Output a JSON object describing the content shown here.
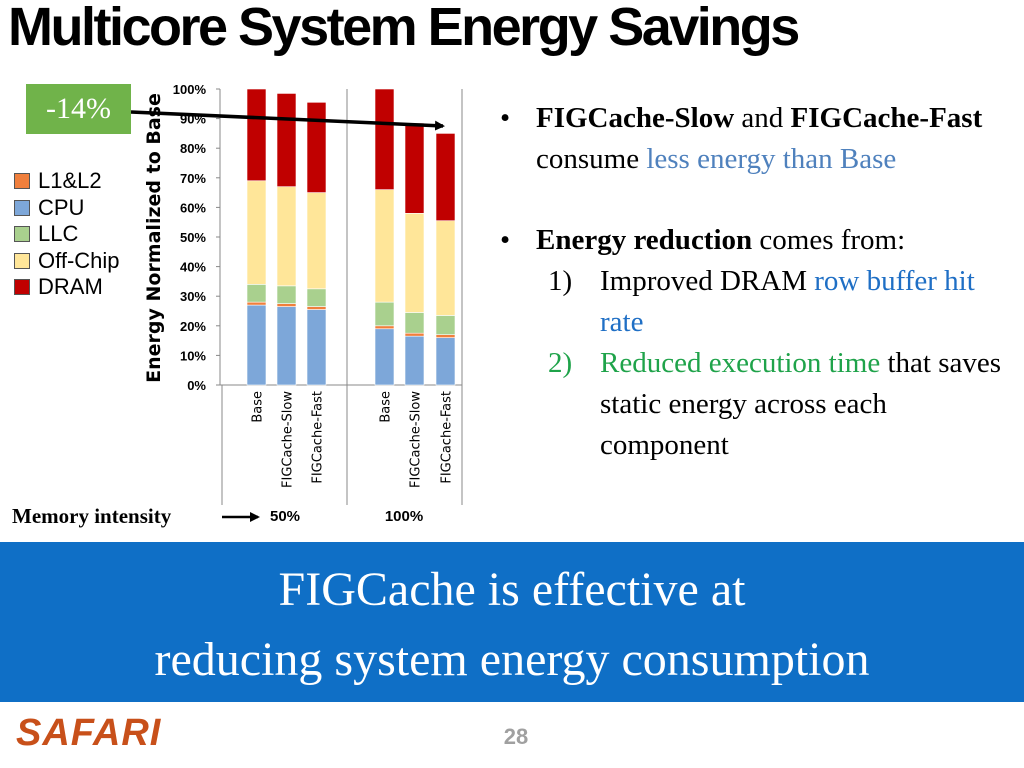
{
  "title": "Multicore System Energy Savings",
  "badge": "-14%",
  "legend": [
    {
      "label": "L1&L2",
      "color": "#f07f3c"
    },
    {
      "label": "CPU",
      "color": "#7da7d9"
    },
    {
      "label": "LLC",
      "color": "#a9d08e"
    },
    {
      "label": "Off-Chip",
      "color": "#ffe699"
    },
    {
      "label": "DRAM",
      "color": "#c00000"
    }
  ],
  "bullets": {
    "b1": {
      "kw1": "FIGCache-Slow",
      "and": " and ",
      "kw2": "FIGCache-Fast",
      "consume": " consume ",
      "hl": "less energy than Base"
    },
    "b2": {
      "kw": "Energy reduction",
      "rest": " comes from:",
      "i1": {
        "num": "1)",
        "text": "Improved DRAM ",
        "hl": "row buffer hit rate"
      },
      "i2": {
        "num": "2)",
        "hl": "Reduced execution time",
        "text": " that saves static energy across each component"
      }
    }
  },
  "memory_label": "Memory intensity",
  "banner": {
    "line1": "FIGCache is effective at",
    "line2": "reducing system energy consumption"
  },
  "logo": "SAFARI",
  "page_number": "28",
  "chart_data": {
    "type": "bar",
    "stacked": true,
    "ylabel": "Energy Normalized to Base",
    "ylim": [
      0,
      100
    ],
    "yticks": [
      "0%",
      "10%",
      "20%",
      "30%",
      "40%",
      "50%",
      "60%",
      "70%",
      "80%",
      "90%",
      "100%"
    ],
    "xlabel": "Memory intensity",
    "groups": [
      {
        "label": "50%",
        "categories": [
          "Base",
          "FIGCache-Slow",
          "FIGCache-Fast"
        ]
      },
      {
        "label": "100%",
        "categories": [
          "Base",
          "FIGCache-Slow",
          "FIGCache-Fast"
        ]
      }
    ],
    "categories": [
      "Base",
      "FIGCache-Slow",
      "FIGCache-Fast",
      "Base",
      "FIGCache-Slow",
      "FIGCache-Fast"
    ],
    "series": [
      {
        "name": "CPU",
        "color": "#7da7d9",
        "values": [
          27,
          26.5,
          25.5,
          19,
          16.5,
          16
        ]
      },
      {
        "name": "L1&L2",
        "color": "#f07f3c",
        "values": [
          1,
          1,
          1,
          1,
          1,
          1
        ]
      },
      {
        "name": "LLC",
        "color": "#a9d08e",
        "values": [
          6,
          6,
          6,
          8,
          7,
          6.5
        ]
      },
      {
        "name": "Off-Chip",
        "color": "#ffe699",
        "values": [
          35,
          33.5,
          32.5,
          38,
          33.5,
          32
        ]
      },
      {
        "name": "DRAM",
        "color": "#c00000",
        "values": [
          31,
          31.5,
          30.5,
          34,
          30.5,
          29.5
        ]
      }
    ],
    "annotation": "-14%",
    "grid": false,
    "legend_position": "left"
  }
}
